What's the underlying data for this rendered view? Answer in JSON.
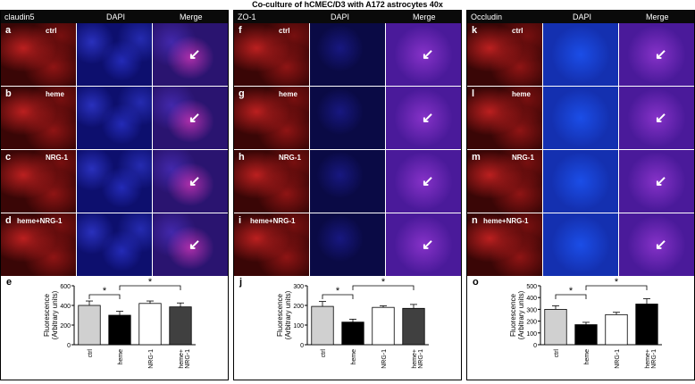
{
  "title": "Co-culture of hCMEC/D3 with A172 astrocytes 40x",
  "panels": [
    {
      "headers": [
        "claudin5",
        "DAPI",
        "Merge"
      ],
      "rows": [
        {
          "letter": "a",
          "label": "ctrl"
        },
        {
          "letter": "b",
          "label": "heme"
        },
        {
          "letter": "c",
          "label": "NRG-1"
        },
        {
          "letter": "d",
          "label": "heme+NRG-1"
        }
      ],
      "chart_letter": "e"
    },
    {
      "headers": [
        "ZO-1",
        "DAPI",
        "Merge"
      ],
      "rows": [
        {
          "letter": "f",
          "label": "ctrl"
        },
        {
          "letter": "g",
          "label": "heme"
        },
        {
          "letter": "h",
          "label": "NRG-1"
        },
        {
          "letter": "i",
          "label": "heme+NRG-1"
        }
      ],
      "chart_letter": "j"
    },
    {
      "headers": [
        "Occludin",
        "DAPI",
        "Merge"
      ],
      "rows": [
        {
          "letter": "k",
          "label": "ctrl"
        },
        {
          "letter": "l",
          "label": "heme"
        },
        {
          "letter": "m",
          "label": "NRG-1"
        },
        {
          "letter": "n",
          "label": "heme+NRG-1"
        }
      ],
      "chart_letter": "o"
    }
  ],
  "chart_data": [
    {
      "type": "bar",
      "categories": [
        "ctrl",
        "heme",
        "NRG-1",
        "heme+\nNRG-1"
      ],
      "values": [
        400,
        300,
        420,
        385
      ],
      "errors": [
        45,
        40,
        25,
        40
      ],
      "ylabel": "Fluorescence\n(Arbitrary units)",
      "ylim": [
        0,
        600
      ],
      "yticks": [
        0,
        200,
        400,
        600
      ],
      "bar_colors": [
        "#d0d0d0",
        "#000000",
        "#ffffff",
        "#404040"
      ],
      "annotations": [
        {
          "from": 0,
          "to": 1,
          "text": "*"
        },
        {
          "from": 1,
          "to": 3,
          "text": "*"
        }
      ]
    },
    {
      "type": "bar",
      "categories": [
        "ctrl",
        "heme",
        "NRG-1",
        "heme+\nNRG-1"
      ],
      "values": [
        195,
        115,
        190,
        185
      ],
      "errors": [
        25,
        15,
        8,
        20
      ],
      "ylabel": "Fluorescence\n(Arbitrary units)",
      "ylim": [
        0,
        300
      ],
      "yticks": [
        0,
        100,
        200,
        300
      ],
      "bar_colors": [
        "#d0d0d0",
        "#000000",
        "#ffffff",
        "#404040"
      ],
      "annotations": [
        {
          "from": 0,
          "to": 1,
          "text": "*"
        },
        {
          "from": 1,
          "to": 3,
          "text": "*"
        }
      ]
    },
    {
      "type": "bar",
      "categories": [
        "ctrl",
        "heme",
        "NRG-1",
        "heme+\nNRG-1"
      ],
      "values": [
        300,
        170,
        255,
        345
      ],
      "errors": [
        30,
        20,
        20,
        45
      ],
      "ylabel": "Fluorescence\n(Arbitrary units)",
      "ylim": [
        0,
        500
      ],
      "yticks": [
        0,
        100,
        200,
        300,
        400,
        500
      ],
      "bar_colors": [
        "#d0d0d0",
        "#000000",
        "#ffffff",
        "#000000"
      ],
      "annotations": [
        {
          "from": 0,
          "to": 1,
          "text": "*"
        },
        {
          "from": 1,
          "to": 3,
          "text": "*"
        }
      ]
    }
  ]
}
